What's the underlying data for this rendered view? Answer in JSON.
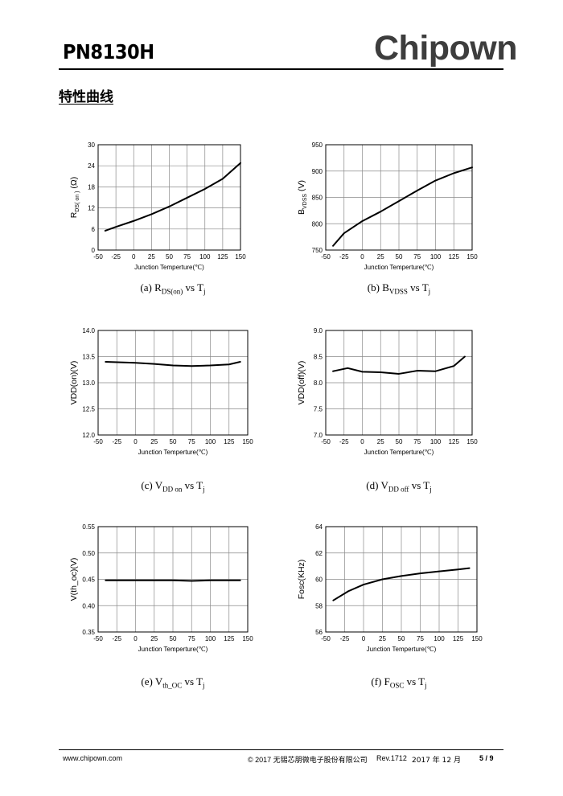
{
  "header": {
    "part_number": "PN8130H",
    "logo_text": "Chipown"
  },
  "section_title": "特性曲线",
  "chart_data": [
    {
      "id": "a",
      "type": "line",
      "ylabel_main": "R",
      "ylabel_sub": "DS( on )",
      "ylabel_unit": " (Ω)",
      "xlabel": "Junction Temperture(℃)",
      "xlim": [
        -50,
        150
      ],
      "xticks": [
        "-50",
        "-25",
        "0",
        "25",
        "50",
        "75",
        "100",
        "125",
        "150"
      ],
      "ylim": [
        0,
        30
      ],
      "yticks": [
        "0",
        "6",
        "12",
        "18",
        "24",
        "30"
      ],
      "grid": true,
      "x": [
        -40,
        -25,
        0,
        25,
        50,
        75,
        100,
        125,
        150
      ],
      "y": [
        5.5,
        6.6,
        8.3,
        10.2,
        12.4,
        14.9,
        17.4,
        20.3,
        24.8
      ],
      "caption": {
        "prefix": "(a) R",
        "sub": "DS(on)",
        "suffix": " vs T",
        "sub2": "j"
      }
    },
    {
      "id": "b",
      "type": "line",
      "ylabel_main": "B",
      "ylabel_sub": "VDSS",
      "ylabel_unit": " (V)",
      "xlabel": "Junction Temperture(℃)",
      "xlim": [
        -50,
        150
      ],
      "xticks": [
        "-50",
        "-25",
        "0",
        "25",
        "50",
        "75",
        "100",
        "125",
        "150"
      ],
      "ylim": [
        750,
        950
      ],
      "yticks": [
        "750",
        "800",
        "850",
        "900",
        "950"
      ],
      "grid": true,
      "x": [
        -40,
        -25,
        0,
        25,
        50,
        75,
        100,
        125,
        150
      ],
      "y": [
        758,
        782,
        805,
        823,
        843,
        863,
        882,
        896,
        907
      ],
      "caption": {
        "prefix": "(b) B",
        "sub": "VDSS",
        "suffix": " vs T",
        "sub2": "j"
      }
    },
    {
      "id": "c",
      "type": "line",
      "ylabel_main": "VDD(on)(V)",
      "ylabel_sub": "",
      "ylabel_unit": "",
      "xlabel": "Junction Temperture(℃)",
      "xlim": [
        -50,
        150
      ],
      "xticks": [
        "-50",
        "-25",
        "0",
        "25",
        "50",
        "75",
        "100",
        "125",
        "150"
      ],
      "ylim": [
        12.0,
        14.0
      ],
      "yticks": [
        "12.0",
        "12.5",
        "13.0",
        "13.5",
        "14.0"
      ],
      "grid": true,
      "x": [
        -40,
        -20,
        0,
        25,
        50,
        75,
        100,
        125,
        140
      ],
      "y": [
        13.4,
        13.39,
        13.38,
        13.36,
        13.33,
        13.32,
        13.33,
        13.35,
        13.4
      ],
      "caption": {
        "prefix": "(c) V",
        "sub": "DD on",
        "suffix": " vs T",
        "sub2": "j"
      }
    },
    {
      "id": "d",
      "type": "line",
      "ylabel_main": "VDD(off)(V)",
      "ylabel_sub": "",
      "ylabel_unit": "",
      "xlabel": "Junction Temperture(℃)",
      "xlim": [
        -50,
        150
      ],
      "xticks": [
        "-50",
        "-25",
        "0",
        "25",
        "50",
        "75",
        "100",
        "125",
        "150"
      ],
      "ylim": [
        7.0,
        9.0
      ],
      "yticks": [
        "7.0",
        "7.5",
        "8.0",
        "8.5",
        "9.0"
      ],
      "grid": true,
      "x": [
        -40,
        -20,
        0,
        25,
        50,
        75,
        100,
        125,
        140
      ],
      "y": [
        8.22,
        8.28,
        8.21,
        8.2,
        8.17,
        8.23,
        8.22,
        8.32,
        8.5
      ],
      "caption": {
        "prefix": "(d) V",
        "sub": "DD off",
        "suffix": " vs T",
        "sub2": "j"
      }
    },
    {
      "id": "e",
      "type": "line",
      "ylabel_main": "V(th_oc)(V)",
      "ylabel_sub": "",
      "ylabel_unit": "",
      "xlabel": "Junction Temperture(℃)",
      "xlim": [
        -50,
        150
      ],
      "xticks": [
        "-50",
        "-25",
        "0",
        "25",
        "50",
        "75",
        "100",
        "125",
        "150"
      ],
      "ylim": [
        0.35,
        0.55
      ],
      "yticks": [
        "0.35",
        "0.40",
        "0.45",
        "0.50",
        "0.55"
      ],
      "grid": true,
      "x": [
        -40,
        -20,
        0,
        25,
        50,
        75,
        100,
        125,
        140
      ],
      "y": [
        0.448,
        0.448,
        0.448,
        0.448,
        0.448,
        0.447,
        0.448,
        0.448,
        0.448
      ],
      "caption": {
        "prefix": "(e) V",
        "sub": "th_OC",
        "suffix": " vs T",
        "sub2": "j"
      }
    },
    {
      "id": "f",
      "type": "line",
      "ylabel_main": "Fosc(KHz)",
      "ylabel_sub": "",
      "ylabel_unit": "",
      "xlabel": "Junction Temperture(℃)",
      "xlim": [
        -50,
        150
      ],
      "xticks": [
        "-50",
        "-25",
        "0",
        "25",
        "50",
        "75",
        "100",
        "125",
        "150"
      ],
      "ylim": [
        56,
        64
      ],
      "yticks": [
        "56",
        "58",
        "60",
        "62",
        "64"
      ],
      "grid": true,
      "x": [
        -40,
        -20,
        0,
        25,
        50,
        75,
        100,
        125,
        140
      ],
      "y": [
        58.4,
        59.1,
        59.6,
        60.0,
        60.25,
        60.45,
        60.6,
        60.75,
        60.85
      ],
      "caption": {
        "prefix": "(f) F",
        "sub": "OSC",
        "suffix": " vs T",
        "sub2": "j"
      }
    }
  ],
  "footer": {
    "website": "www.chipown.com",
    "copyright": "© 2017 ",
    "company": "无锡芯朋微电子股份有限公司",
    "revision": "Rev.1712",
    "date": "2017 年 12 月",
    "page": "5 / 9"
  }
}
